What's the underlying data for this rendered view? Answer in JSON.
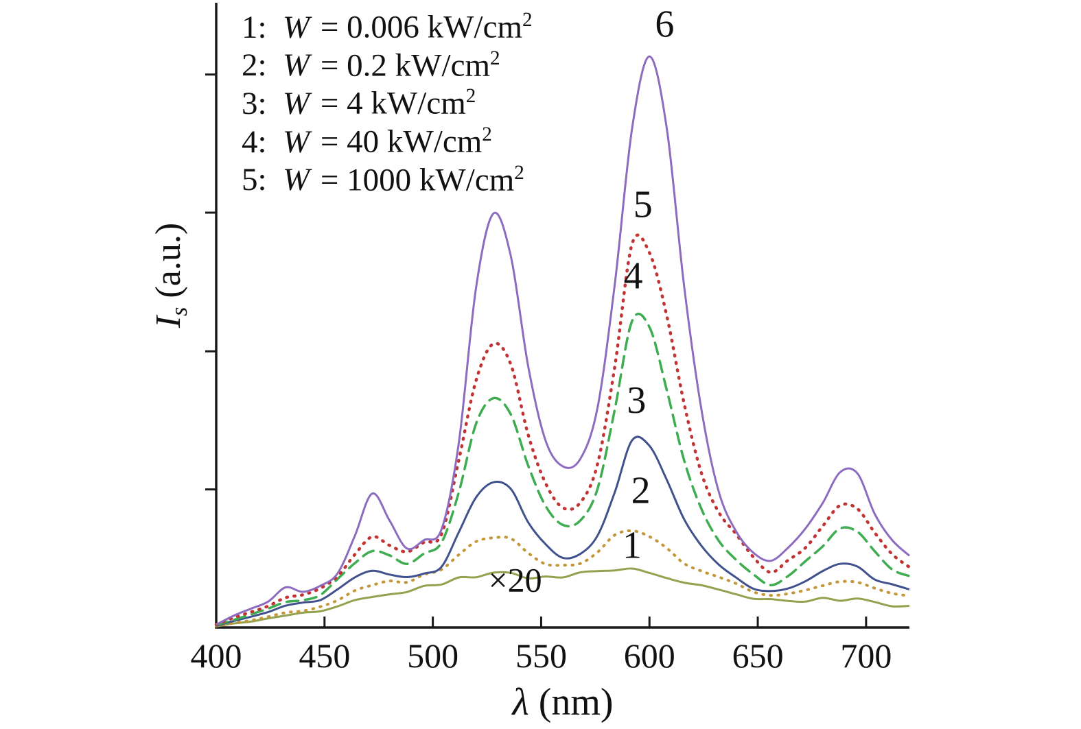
{
  "figure": {
    "xlabel": {
      "symbol": "λ",
      "rest": " (nm)"
    },
    "ylabel": {
      "symbol": "I",
      "sub": "s",
      "rest": " (a.u.)"
    }
  },
  "legend": {
    "items": [
      {
        "prefix": "1:",
        "variable": "W",
        "rest": "= 0.006 kW/cm",
        "sup": "2"
      },
      {
        "prefix": "2:",
        "variable": "W",
        "rest": "= 0.2 kW/cm",
        "sup": "2"
      },
      {
        "prefix": "3:",
        "variable": "W",
        "rest": "= 4 kW/cm",
        "sup": "2"
      },
      {
        "prefix": "4:",
        "variable": "W",
        "rest": "= 40 kW/cm",
        "sup": "2"
      },
      {
        "prefix": "5:",
        "variable": "W",
        "rest": "= 1000 kW/cm",
        "sup": "2"
      }
    ]
  },
  "chart_data": {
    "type": "line",
    "title": "",
    "xlabel": "λ (nm)",
    "ylabel": "Is (a.u.)",
    "xlim": [
      400,
      720
    ],
    "ylim": [
      0,
      1
    ],
    "x_ticks": [
      400,
      450,
      500,
      550,
      600,
      650,
      700
    ],
    "y_ticks": [
      0.222,
      0.444,
      0.667,
      0.889
    ],
    "grid": false,
    "legend_position": "upper-left-inside",
    "x": [
      400,
      408,
      416,
      424,
      432,
      440,
      448,
      456,
      464,
      472,
      480,
      488,
      496,
      504,
      512,
      520,
      528,
      536,
      544,
      552,
      560,
      568,
      576,
      584,
      592,
      600,
      608,
      616,
      624,
      632,
      640,
      648,
      656,
      664,
      672,
      680,
      688,
      696,
      704,
      712,
      720
    ],
    "series": [
      {
        "name": "1",
        "color": "#93a24f",
        "style": "solid",
        "width": 3,
        "values": [
          0.002,
          0.006,
          0.01,
          0.015,
          0.02,
          0.024,
          0.028,
          0.036,
          0.046,
          0.052,
          0.055,
          0.058,
          0.065,
          0.072,
          0.078,
          0.083,
          0.086,
          0.085,
          0.082,
          0.08,
          0.082,
          0.086,
          0.09,
          0.094,
          0.093,
          0.088,
          0.08,
          0.072,
          0.065,
          0.058,
          0.052,
          0.047,
          0.043,
          0.042,
          0.043,
          0.045,
          0.046,
          0.044,
          0.04,
          0.036,
          0.033
        ]
      },
      {
        "name": "2",
        "color": "#c39738",
        "style": "dotted",
        "width": 4,
        "values": [
          0.002,
          0.007,
          0.012,
          0.018,
          0.024,
          0.028,
          0.034,
          0.045,
          0.06,
          0.07,
          0.072,
          0.075,
          0.085,
          0.095,
          0.115,
          0.135,
          0.145,
          0.14,
          0.12,
          0.105,
          0.1,
          0.105,
          0.12,
          0.15,
          0.155,
          0.145,
          0.125,
          0.105,
          0.09,
          0.08,
          0.07,
          0.06,
          0.052,
          0.055,
          0.06,
          0.068,
          0.072,
          0.07,
          0.062,
          0.055,
          0.05
        ]
      },
      {
        "name": "3",
        "color": "#41518e",
        "style": "solid",
        "width": 3,
        "values": [
          0.003,
          0.01,
          0.018,
          0.025,
          0.033,
          0.038,
          0.045,
          0.06,
          0.08,
          0.092,
          0.085,
          0.08,
          0.09,
          0.1,
          0.15,
          0.21,
          0.235,
          0.22,
          0.17,
          0.135,
          0.115,
          0.12,
          0.15,
          0.22,
          0.3,
          0.295,
          0.24,
          0.175,
          0.13,
          0.1,
          0.08,
          0.065,
          0.058,
          0.065,
          0.075,
          0.09,
          0.1,
          0.095,
          0.08,
          0.07,
          0.06
        ]
      },
      {
        "name": "4",
        "color": "#3eac50",
        "style": "dashed",
        "width": 3.5,
        "values": [
          0.004,
          0.012,
          0.02,
          0.03,
          0.04,
          0.045,
          0.055,
          0.075,
          0.105,
          0.125,
          0.115,
          0.105,
          0.12,
          0.135,
          0.22,
          0.33,
          0.37,
          0.345,
          0.26,
          0.195,
          0.165,
          0.17,
          0.22,
          0.35,
          0.49,
          0.48,
          0.38,
          0.27,
          0.19,
          0.14,
          0.11,
          0.085,
          0.07,
          0.085,
          0.105,
          0.13,
          0.16,
          0.155,
          0.12,
          0.095,
          0.08
        ]
      },
      {
        "name": "5",
        "color": "#c23434",
        "style": "dotted",
        "width": 4.5,
        "values": [
          0.005,
          0.015,
          0.025,
          0.035,
          0.045,
          0.05,
          0.06,
          0.08,
          0.12,
          0.145,
          0.13,
          0.12,
          0.135,
          0.15,
          0.27,
          0.4,
          0.455,
          0.42,
          0.31,
          0.23,
          0.19,
          0.2,
          0.26,
          0.42,
          0.62,
          0.6,
          0.5,
          0.36,
          0.25,
          0.185,
          0.15,
          0.115,
          0.09,
          0.11,
          0.13,
          0.16,
          0.195,
          0.19,
          0.15,
          0.12,
          0.1
        ]
      },
      {
        "name": "6",
        "color": "#8d6cc0",
        "style": "solid",
        "width": 3,
        "values": [
          0.005,
          0.02,
          0.03,
          0.04,
          0.065,
          0.06,
          0.065,
          0.09,
          0.15,
          0.215,
          0.17,
          0.13,
          0.14,
          0.16,
          0.3,
          0.55,
          0.665,
          0.6,
          0.42,
          0.3,
          0.26,
          0.27,
          0.35,
          0.55,
          0.8,
          0.92,
          0.8,
          0.55,
          0.35,
          0.22,
          0.155,
          0.12,
          0.105,
          0.13,
          0.16,
          0.2,
          0.25,
          0.245,
          0.18,
          0.14,
          0.115
        ]
      }
    ],
    "annotations": [
      {
        "text": "6",
        "x": 607,
        "y": 0.95,
        "size": 56
      },
      {
        "text": "5",
        "x": 597,
        "y": 0.66,
        "size": 56
      },
      {
        "text": "4",
        "x": 592.5,
        "y": 0.545,
        "size": 56
      },
      {
        "text": "3",
        "x": 594,
        "y": 0.345,
        "size": 56
      },
      {
        "text": "2",
        "x": 596,
        "y": 0.2,
        "size": 56
      },
      {
        "text": "1",
        "x": 592,
        "y": 0.112,
        "size": 56
      },
      {
        "text": "×20",
        "x": 538,
        "y": 0.058,
        "size": 50
      }
    ]
  }
}
